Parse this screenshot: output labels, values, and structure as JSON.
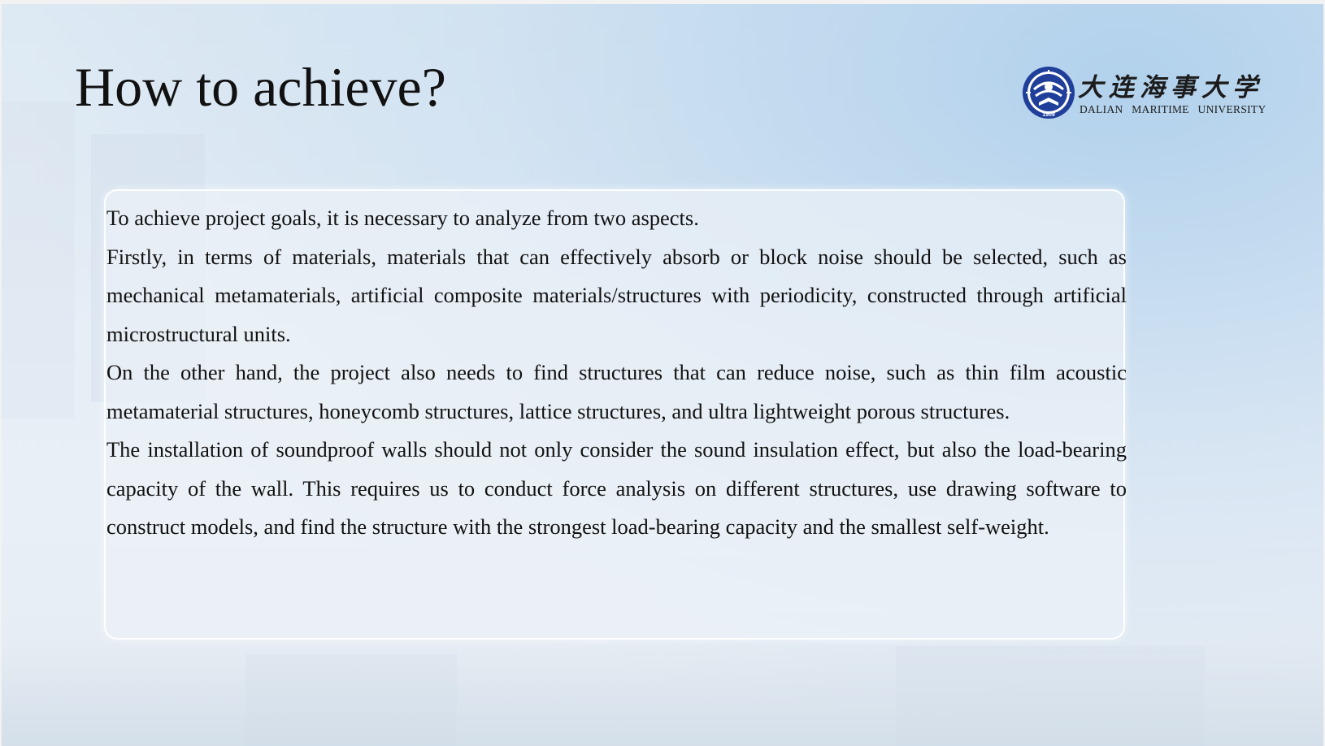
{
  "slide": {
    "title": "How to achieve?"
  },
  "logo": {
    "chinese_name": "大连海事大学",
    "english_name": "DALIAN MARITIME UNIVERSITY",
    "emblem_icon": "dmu-emblem-icon",
    "emblem_year": "1909",
    "brand_color": "#1f3f9a"
  },
  "content": {
    "paragraphs": [
      "To achieve project goals, it is necessary to analyze from two aspects.",
      "Firstly, in terms of materials, materials that can effectively absorb or block noise should be selected, such as mechanical metamaterials, artificial composite materials/structures with periodicity, constructed through artificial microstructural units.",
      "On the other hand, the project also needs to find structures that can reduce noise, such as thin film acoustic metamaterial structures, honeycomb structures, lattice structures, and ultra lightweight porous structures.",
      "The installation of soundproof walls should not only consider the sound insulation effect, but also the load-bearing capacity of the wall.  This requires us to conduct force analysis on different structures, use drawing software to construct models, and find the structure with the strongest load-bearing capacity and the smallest self-weight."
    ]
  }
}
